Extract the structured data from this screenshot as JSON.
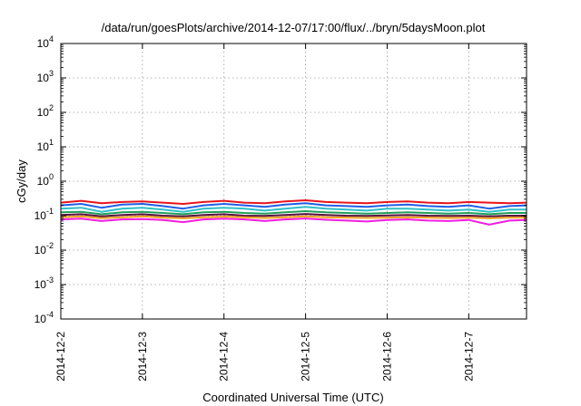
{
  "chart_data": {
    "type": "line",
    "title": "/data/run/goesPlots/archive/2014-12-07/17:00/flux/../bryn/5daysMoon.plot",
    "xlabel": "Coordinated Universal Time (UTC)",
    "ylabel": "cGy/day",
    "y_scale": "log",
    "ylim": [
      0.0001,
      10000
    ],
    "y_ticks": [
      {
        "value": 0.0001,
        "base": "10",
        "exp": "-4"
      },
      {
        "value": 0.001,
        "base": "10",
        "exp": "-3"
      },
      {
        "value": 0.01,
        "base": "10",
        "exp": "-2"
      },
      {
        "value": 0.1,
        "base": "10",
        "exp": "-1"
      },
      {
        "value": 1,
        "base": "10",
        "exp": "0"
      },
      {
        "value": 10,
        "base": "10",
        "exp": "1"
      },
      {
        "value": 100,
        "base": "10",
        "exp": "2"
      },
      {
        "value": 1000,
        "base": "10",
        "exp": "3"
      },
      {
        "value": 10000,
        "base": "10",
        "exp": "4"
      }
    ],
    "xlim": [
      "2014-12-02T00:00",
      "2014-12-07T17:00"
    ],
    "x_ticks": [
      "2014-12-2",
      "2014-12-3",
      "2014-12-4",
      "2014-12-5",
      "2014-12-6",
      "2014-12-7"
    ],
    "grid": true,
    "x": [
      "2014-12-02T00:00",
      "2014-12-02T06:00",
      "2014-12-02T12:00",
      "2014-12-02T18:00",
      "2014-12-03T00:00",
      "2014-12-03T06:00",
      "2014-12-03T12:00",
      "2014-12-03T18:00",
      "2014-12-04T00:00",
      "2014-12-04T06:00",
      "2014-12-04T12:00",
      "2014-12-04T18:00",
      "2014-12-05T00:00",
      "2014-12-05T06:00",
      "2014-12-05T12:00",
      "2014-12-05T18:00",
      "2014-12-06T00:00",
      "2014-12-06T06:00",
      "2014-12-06T12:00",
      "2014-12-06T18:00",
      "2014-12-07T00:00",
      "2014-12-07T06:00",
      "2014-12-07T12:00",
      "2014-12-07T17:00"
    ],
    "series": [
      {
        "color": "#e8141b",
        "values": [
          0.24,
          0.27,
          0.23,
          0.25,
          0.26,
          0.24,
          0.22,
          0.25,
          0.27,
          0.24,
          0.23,
          0.26,
          0.28,
          0.25,
          0.24,
          0.23,
          0.25,
          0.26,
          0.24,
          0.23,
          0.25,
          0.24,
          0.23,
          0.24
        ]
      },
      {
        "color": "#1f5fe6",
        "values": [
          0.2,
          0.22,
          0.17,
          0.21,
          0.22,
          0.19,
          0.16,
          0.2,
          0.22,
          0.2,
          0.18,
          0.21,
          0.23,
          0.2,
          0.19,
          0.18,
          0.2,
          0.21,
          0.19,
          0.18,
          0.2,
          0.16,
          0.19,
          0.2
        ]
      },
      {
        "color": "#2fc0c6",
        "values": [
          0.16,
          0.17,
          0.13,
          0.16,
          0.17,
          0.15,
          0.13,
          0.16,
          0.17,
          0.16,
          0.14,
          0.16,
          0.18,
          0.16,
          0.15,
          0.14,
          0.16,
          0.16,
          0.15,
          0.14,
          0.15,
          0.13,
          0.15,
          0.15
        ]
      },
      {
        "color": "#21a05a",
        "values": [
          0.125,
          0.13,
          0.11,
          0.125,
          0.13,
          0.12,
          0.11,
          0.125,
          0.13,
          0.12,
          0.115,
          0.125,
          0.135,
          0.125,
          0.12,
          0.115,
          0.12,
          0.125,
          0.12,
          0.115,
          0.12,
          0.11,
          0.12,
          0.12
        ]
      },
      {
        "color": "#5a0f3c",
        "values": [
          0.105,
          0.11,
          0.095,
          0.105,
          0.11,
          0.1,
          0.095,
          0.105,
          0.11,
          0.1,
          0.098,
          0.105,
          0.112,
          0.105,
          0.1,
          0.098,
          0.102,
          0.105,
          0.1,
          0.098,
          0.1,
          0.095,
          0.1,
          0.1
        ]
      },
      {
        "color": "#f0a020",
        "values": [
          0.09,
          0.095,
          0.085,
          0.09,
          0.095,
          0.088,
          0.084,
          0.09,
          0.094,
          0.09,
          0.086,
          0.09,
          0.096,
          0.09,
          0.088,
          0.086,
          0.088,
          0.09,
          0.088,
          0.086,
          0.088,
          0.084,
          0.088,
          0.088
        ]
      },
      {
        "color": "#f01ee0",
        "values": [
          0.078,
          0.082,
          0.07,
          0.078,
          0.08,
          0.075,
          0.065,
          0.078,
          0.082,
          0.078,
          0.07,
          0.078,
          0.083,
          0.076,
          0.072,
          0.068,
          0.075,
          0.078,
          0.072,
          0.07,
          0.075,
          0.055,
          0.072,
          0.075
        ]
      }
    ]
  }
}
